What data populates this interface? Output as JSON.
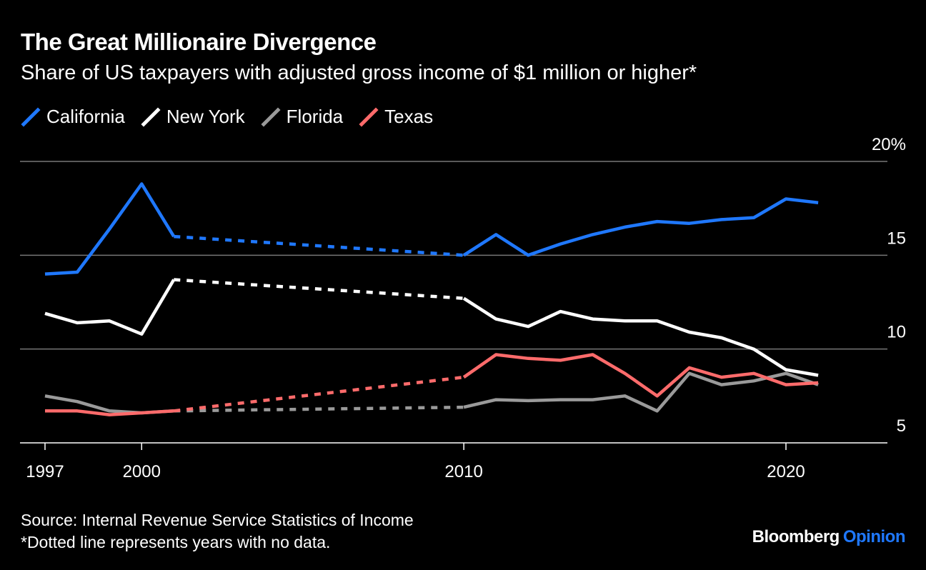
{
  "title": "The Great Millionaire Divergence",
  "subtitle": "Share of US taxpayers with adjusted gross income of $1 million or higher*",
  "legend": [
    {
      "name": "California",
      "color": "#1f78ff"
    },
    {
      "name": "New York",
      "color": "#ffffff"
    },
    {
      "name": "Florida",
      "color": "#9a9a9a"
    },
    {
      "name": "Texas",
      "color": "#ff6b6b"
    }
  ],
  "footer": {
    "source": "Source: Internal Revenue Service Statistics of Income",
    "note": "*Dotted line represents years with no data.",
    "brand_main": "Bloomberg",
    "brand_accent": "Opinion",
    "brand_accent_color": "#1f78ff"
  },
  "chart_data": {
    "type": "line",
    "ylabel": "",
    "xlabel": "",
    "xlim": [
      1997,
      2021
    ],
    "ylim": [
      5,
      20
    ],
    "y_ticks": [
      "20%",
      "15",
      "10",
      "5"
    ],
    "y_tick_values": [
      20,
      15,
      10,
      5
    ],
    "x_ticks": [
      "1997",
      "2000",
      "2010",
      "2020"
    ],
    "x_tick_values": [
      1997,
      2000,
      2010,
      2020
    ],
    "grid": true,
    "gap_years": [
      2001,
      2010
    ],
    "series": [
      {
        "name": "California",
        "color": "#1f78ff",
        "x": [
          1997,
          1998,
          1999,
          2000,
          2001,
          2010,
          2011,
          2012,
          2013,
          2014,
          2015,
          2016,
          2017,
          2018,
          2019,
          2020,
          2021
        ],
        "y": [
          14.0,
          14.1,
          16.4,
          18.8,
          16.0,
          15.0,
          16.1,
          15.0,
          15.6,
          16.1,
          16.5,
          16.8,
          16.7,
          16.9,
          17.0,
          18.0,
          17.8
        ]
      },
      {
        "name": "New York",
        "color": "#ffffff",
        "x": [
          1997,
          1998,
          1999,
          2000,
          2001,
          2010,
          2011,
          2012,
          2013,
          2014,
          2015,
          2016,
          2017,
          2018,
          2019,
          2020,
          2021
        ],
        "y": [
          11.9,
          11.4,
          11.5,
          10.8,
          13.7,
          12.7,
          11.6,
          11.2,
          12.0,
          11.6,
          11.5,
          11.5,
          10.9,
          10.6,
          10.0,
          8.9,
          8.6
        ]
      },
      {
        "name": "Florida",
        "color": "#9a9a9a",
        "x": [
          1997,
          1998,
          1999,
          2000,
          2001,
          2010,
          2011,
          2012,
          2013,
          2014,
          2015,
          2016,
          2017,
          2018,
          2019,
          2020,
          2021
        ],
        "y": [
          7.5,
          7.2,
          6.7,
          6.6,
          6.7,
          6.9,
          7.3,
          7.25,
          7.3,
          7.3,
          7.5,
          6.7,
          8.7,
          8.1,
          8.3,
          8.7,
          8.1
        ]
      },
      {
        "name": "Texas",
        "color": "#ff6b6b",
        "x": [
          1997,
          1998,
          1999,
          2000,
          2001,
          2010,
          2011,
          2012,
          2013,
          2014,
          2015,
          2016,
          2017,
          2018,
          2019,
          2020,
          2021
        ],
        "y": [
          6.7,
          6.7,
          6.5,
          6.6,
          6.7,
          8.5,
          9.7,
          9.5,
          9.4,
          9.7,
          8.7,
          7.5,
          9.0,
          8.5,
          8.7,
          8.1,
          8.2
        ]
      }
    ]
  }
}
